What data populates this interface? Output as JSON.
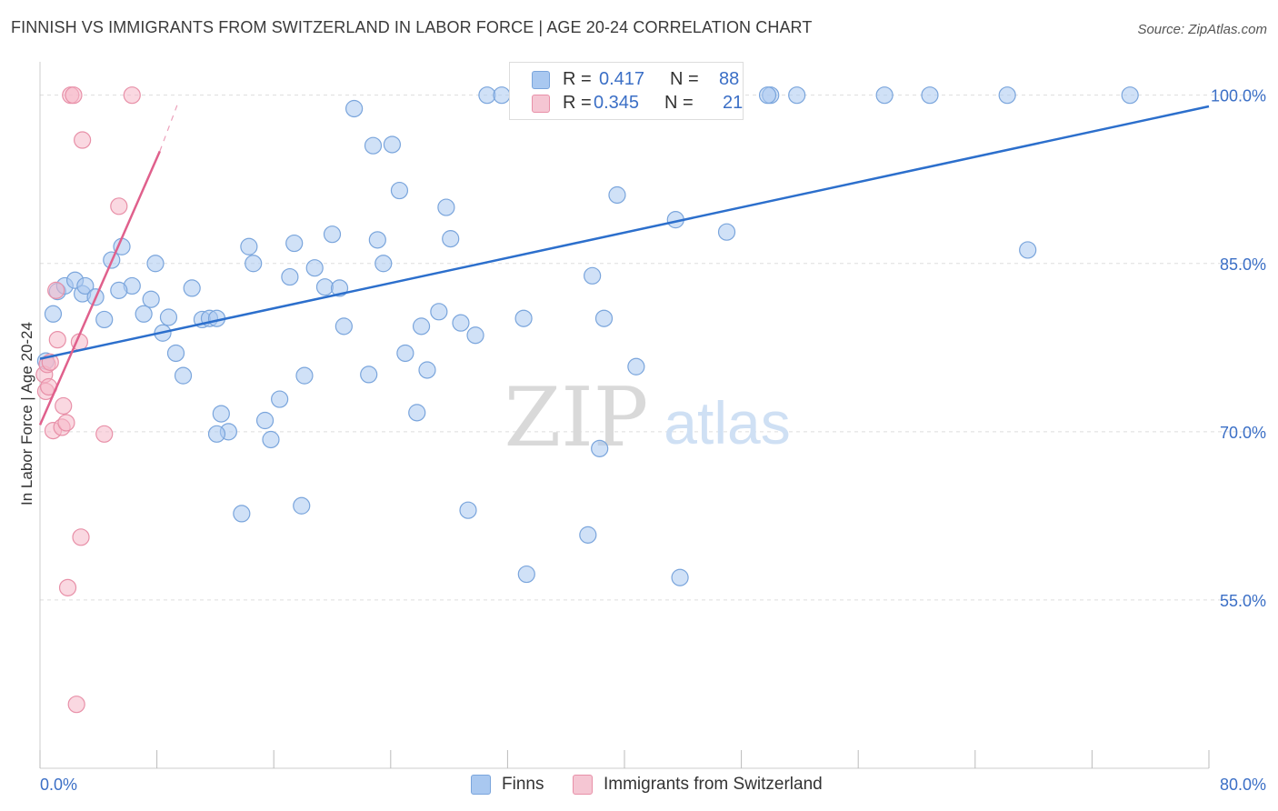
{
  "title": "FINNISH VS IMMIGRANTS FROM SWITZERLAND IN LABOR FORCE | AGE 20-24 CORRELATION CHART",
  "source": "Source: ZipAtlas.com",
  "watermark": {
    "zip": "ZIP",
    "atlas": "atlas"
  },
  "colors": {
    "finns_fill": "#a9c8f0",
    "finns_stroke": "#7aa5dc",
    "finns_line": "#2c6fcc",
    "swiss_fill": "#f5b8c8",
    "swiss_stroke": "#e890a8",
    "swiss_line": "#e0608c",
    "axis_text": "#3b6fc6",
    "grid": "#dddddd"
  },
  "legend_top": {
    "rows": [
      {
        "r_label": "R =",
        "r_value": "0.417",
        "n_label": "N =",
        "n_value": "88"
      },
      {
        "r_label": "R =",
        "r_value": "0.345",
        "n_label": "N =",
        "n_value": "21"
      }
    ]
  },
  "legend_bottom": {
    "finns": "Finns",
    "swiss": "Immigrants from Switzerland"
  },
  "chart_data": {
    "type": "scatter",
    "title": "FINNISH VS IMMIGRANTS FROM SWITZERLAND IN LABOR FORCE | AGE 20-24 CORRELATION CHART",
    "xlabel": "",
    "ylabel": "In Labor Force | Age 20-24",
    "xlim": [
      0,
      80
    ],
    "ylim": [
      40,
      102
    ],
    "x_tick_labels": [
      "0.0%",
      "80.0%"
    ],
    "y_ticks": [
      55,
      70,
      85,
      100
    ],
    "y_tick_labels": [
      "55.0%",
      "70.0%",
      "85.0%",
      "100.0%"
    ],
    "grid": true,
    "series": [
      {
        "name": "Finns",
        "points": [
          [
            0.4,
            76.3
          ],
          [
            0.9,
            80.5
          ],
          [
            1.2,
            82.5
          ],
          [
            1.7,
            83.0
          ],
          [
            2.4,
            83.5
          ],
          [
            2.9,
            82.3
          ],
          [
            3.1,
            83.0
          ],
          [
            3.8,
            82.0
          ],
          [
            4.4,
            80.0
          ],
          [
            4.9,
            85.3
          ],
          [
            5.6,
            86.5
          ],
          [
            6.3,
            83.0
          ],
          [
            5.4,
            82.6
          ],
          [
            7.1,
            80.5
          ],
          [
            7.6,
            81.8
          ],
          [
            7.9,
            85.0
          ],
          [
            8.4,
            78.8
          ],
          [
            8.8,
            80.2
          ],
          [
            9.3,
            77.0
          ],
          [
            9.8,
            75.0
          ],
          [
            10.4,
            82.8
          ],
          [
            11.1,
            80.0
          ],
          [
            11.6,
            80.1
          ],
          [
            12.1,
            80.1
          ],
          [
            12.4,
            71.6
          ],
          [
            12.9,
            70.0
          ],
          [
            12.1,
            69.8
          ],
          [
            13.8,
            62.7
          ],
          [
            14.3,
            86.5
          ],
          [
            14.6,
            85.0
          ],
          [
            15.4,
            71.0
          ],
          [
            15.8,
            69.3
          ],
          [
            16.4,
            72.9
          ],
          [
            17.1,
            83.8
          ],
          [
            17.4,
            86.8
          ],
          [
            17.9,
            63.4
          ],
          [
            18.1,
            75.0
          ],
          [
            18.8,
            84.6
          ],
          [
            19.5,
            82.9
          ],
          [
            20.0,
            87.6
          ],
          [
            20.5,
            82.8
          ],
          [
            20.8,
            79.4
          ],
          [
            21.5,
            98.8
          ],
          [
            22.5,
            75.1
          ],
          [
            22.8,
            95.5
          ],
          [
            23.1,
            87.1
          ],
          [
            23.5,
            85.0
          ],
          [
            24.1,
            95.6
          ],
          [
            24.6,
            91.5
          ],
          [
            25.0,
            77.0
          ],
          [
            25.8,
            71.7
          ],
          [
            26.1,
            79.4
          ],
          [
            26.5,
            75.5
          ],
          [
            27.3,
            80.7
          ],
          [
            27.8,
            90.0
          ],
          [
            28.1,
            87.2
          ],
          [
            28.8,
            79.7
          ],
          [
            29.3,
            63.0
          ],
          [
            29.8,
            78.6
          ],
          [
            30.6,
            100.0
          ],
          [
            31.6,
            100.0
          ],
          [
            33.1,
            80.1
          ],
          [
            33.3,
            57.3
          ],
          [
            34.0,
            100.0
          ],
          [
            34.8,
            100.0
          ],
          [
            36.3,
            100.0
          ],
          [
            36.8,
            100.0
          ],
          [
            37.5,
            60.8
          ],
          [
            37.8,
            83.9
          ],
          [
            38.3,
            68.5
          ],
          [
            38.6,
            80.1
          ],
          [
            39.5,
            91.1
          ],
          [
            40.3,
            100.0
          ],
          [
            40.8,
            75.8
          ],
          [
            42.3,
            100.0
          ],
          [
            43.5,
            88.9
          ],
          [
            43.8,
            57.0
          ],
          [
            44.3,
            100.0
          ],
          [
            44.8,
            100.0
          ],
          [
            47.0,
            87.8
          ],
          [
            50.0,
            100.0
          ],
          [
            51.8,
            100.0
          ],
          [
            57.8,
            100.0
          ],
          [
            60.9,
            100.0
          ],
          [
            66.2,
            100.0
          ],
          [
            67.6,
            86.2
          ],
          [
            74.6,
            100.0
          ],
          [
            49.8,
            100.0
          ]
        ]
      },
      {
        "name": "Immigrants from Switzerland",
        "points": [
          [
            0.3,
            75.1
          ],
          [
            0.4,
            73.6
          ],
          [
            0.5,
            76.0
          ],
          [
            0.7,
            76.2
          ],
          [
            0.9,
            70.1
          ],
          [
            1.1,
            82.6
          ],
          [
            1.2,
            78.2
          ],
          [
            1.5,
            70.4
          ],
          [
            1.6,
            72.3
          ],
          [
            1.8,
            70.8
          ],
          [
            1.9,
            56.1
          ],
          [
            2.1,
            100.0
          ],
          [
            2.3,
            100.0
          ],
          [
            2.5,
            45.7
          ],
          [
            2.7,
            78.0
          ],
          [
            2.8,
            60.6
          ],
          [
            2.9,
            96.0
          ],
          [
            4.4,
            69.8
          ],
          [
            5.4,
            90.1
          ],
          [
            6.3,
            100.0
          ],
          [
            0.6,
            74.0
          ]
        ]
      }
    ],
    "trend_lines": [
      {
        "name": "Finns",
        "from": [
          0,
          76.5
        ],
        "to": [
          80,
          99.0
        ]
      },
      {
        "name": "Immigrants from Switzerland",
        "from": [
          0,
          70.6
        ],
        "to": [
          8.2,
          95.0
        ],
        "dashed_to": [
          9.5,
          99.5
        ]
      }
    ]
  }
}
